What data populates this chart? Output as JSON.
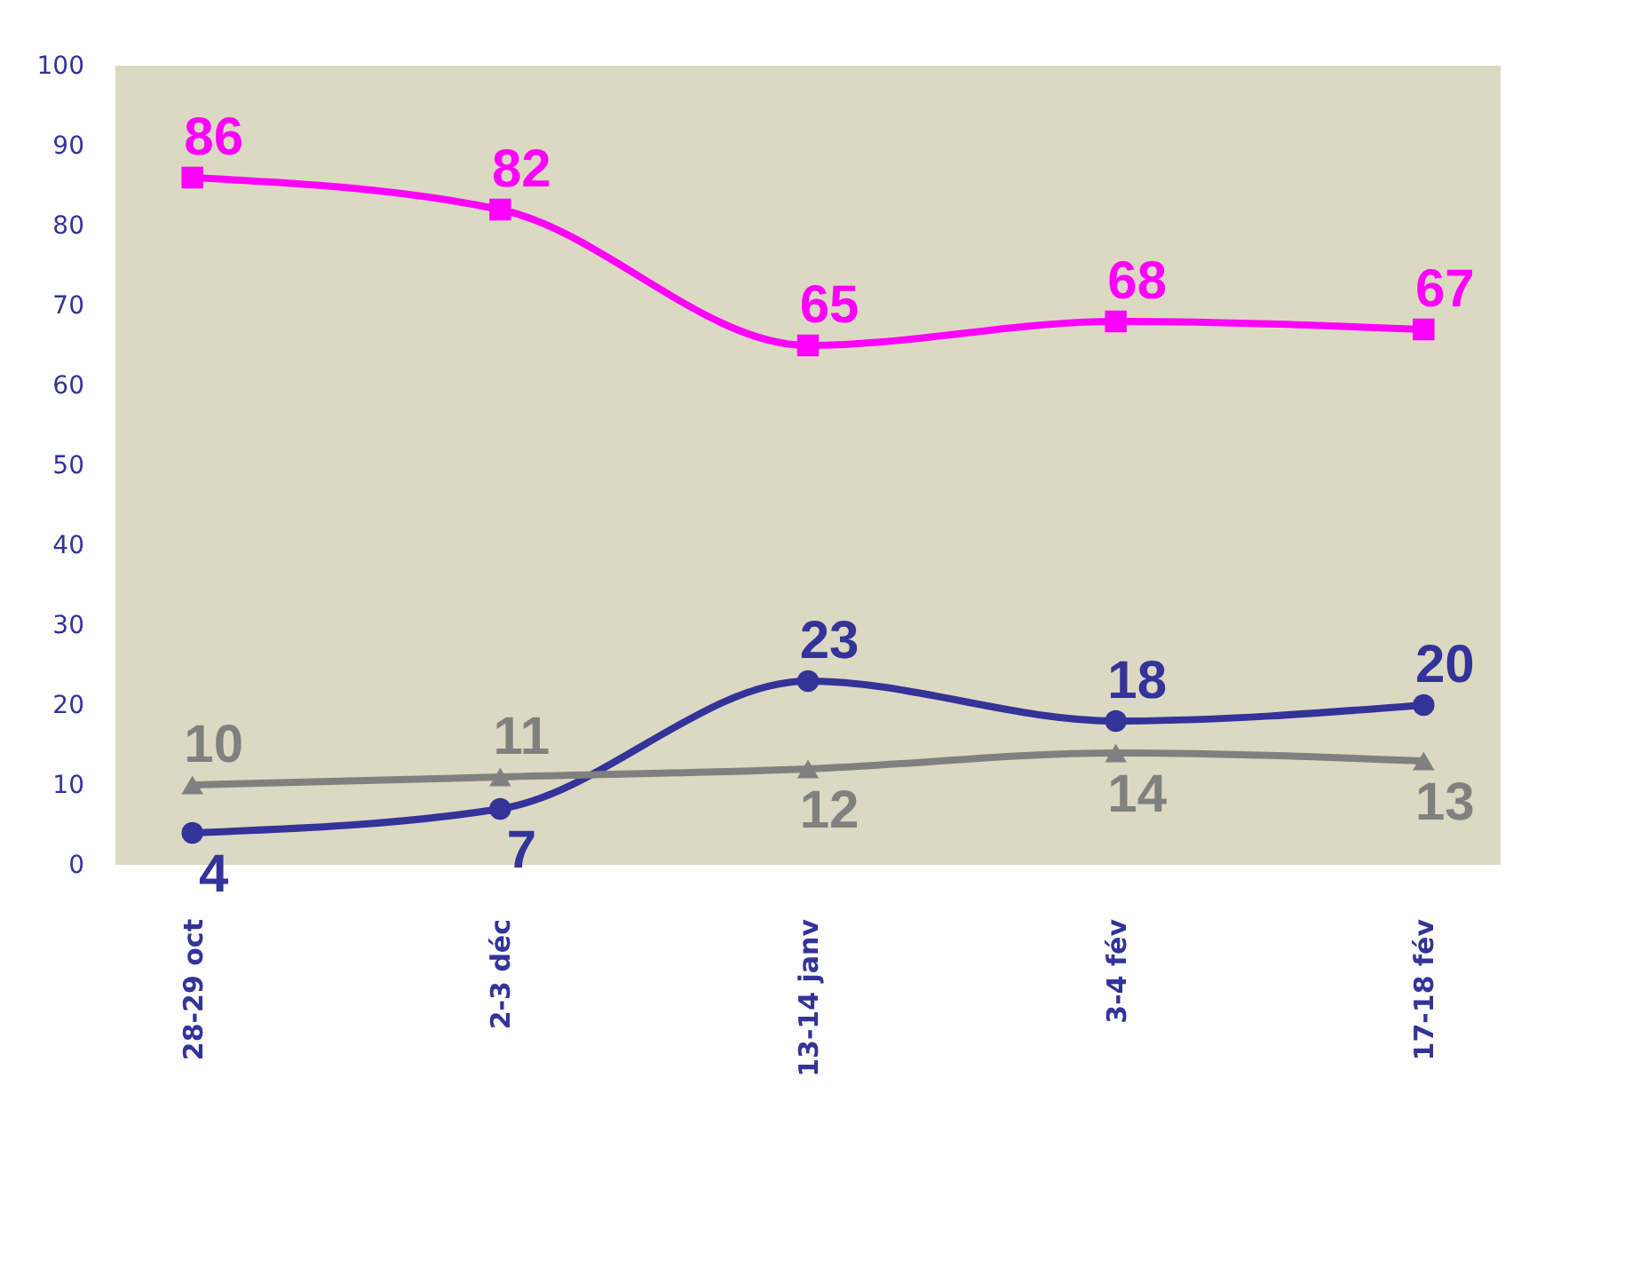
{
  "chart_data": {
    "type": "line",
    "categories": [
      "28-29 oct",
      "2-3 déc",
      "13-14 janv",
      "3-4 fév",
      "17-18 fév"
    ],
    "series": [
      {
        "color": "#ff00ff",
        "marker": "square",
        "values": [
          86,
          82,
          65,
          68,
          67
        ]
      },
      {
        "color": "#333399",
        "marker": "circle",
        "values": [
          4,
          7,
          23,
          18,
          20
        ]
      },
      {
        "color": "#808080",
        "marker": "triangle",
        "values": [
          10,
          11,
          12,
          14,
          13
        ]
      }
    ],
    "ylim": [
      0,
      100
    ],
    "yticks": [
      0,
      10,
      20,
      30,
      40,
      50,
      60,
      70,
      80,
      90,
      100
    ],
    "grid": false,
    "data_labels": true,
    "line_style": "solid"
  }
}
